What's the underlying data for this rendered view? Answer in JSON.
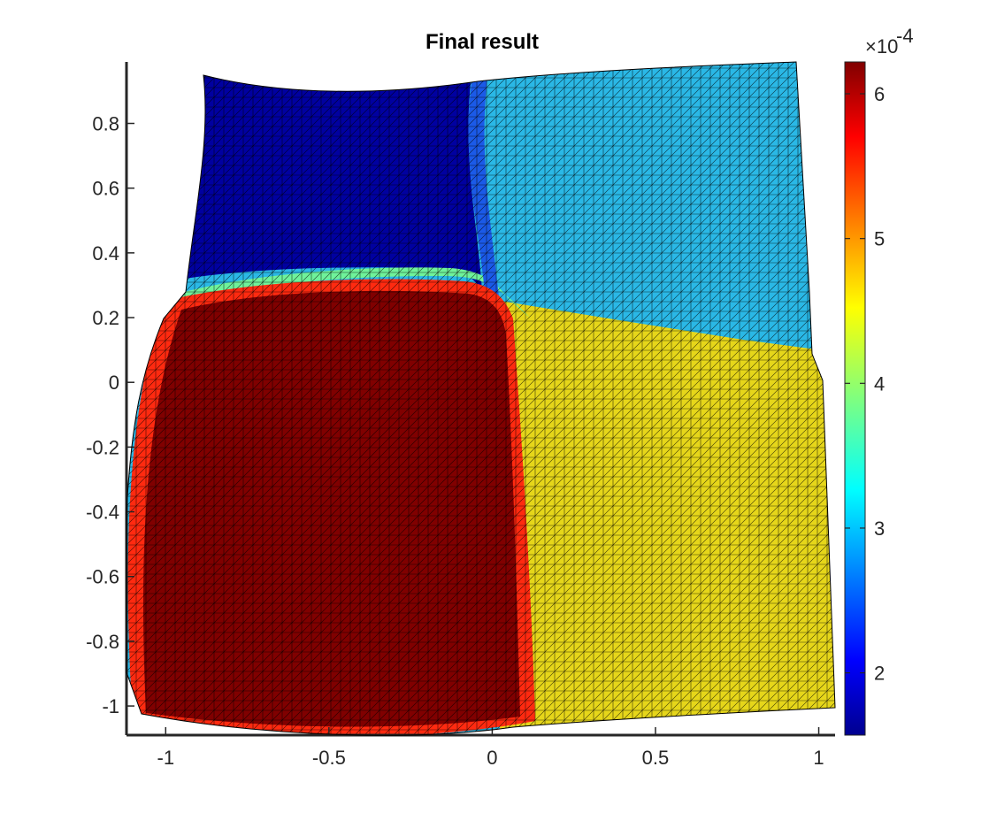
{
  "chart_data": {
    "type": "heatmap",
    "title": "Final result",
    "xlabel": "",
    "ylabel": "",
    "xlim": [
      -1.12,
      1.05
    ],
    "ylim": [
      -1.09,
      0.99
    ],
    "x_ticks": [
      -1,
      -0.5,
      0,
      0.5,
      1
    ],
    "x_tick_labels": [
      "-1",
      "-0.5",
      "0",
      "0.5",
      "1"
    ],
    "y_ticks": [
      0.8,
      0.6,
      0.4,
      0.2,
      0,
      -0.2,
      -0.4,
      -0.6,
      -0.8,
      -1
    ],
    "y_tick_labels": [
      "0.8",
      "0.6",
      "0.4",
      "0.2",
      "0",
      "-0.2",
      "-0.4",
      "-0.6",
      "-0.8",
      "-1"
    ],
    "colorbar": {
      "colormap": "jet",
      "clim": [
        1.57,
        6.22
      ],
      "ticks": [
        2,
        3,
        4,
        5,
        6
      ],
      "tick_labels": [
        "2",
        "3",
        "4",
        "5",
        "6"
      ],
      "exponent_base": "×10",
      "exponent_power": "-4"
    },
    "regions": [
      {
        "position": "bottom-left",
        "value": 6.2,
        "color": "#800000"
      },
      {
        "position": "bottom-right",
        "value": 4.4,
        "color": "#e6d61a"
      },
      {
        "position": "top-left",
        "value": 1.65,
        "color": "#0000a0"
      },
      {
        "position": "top-right",
        "value": 3.1,
        "color": "#2ab8e6"
      }
    ],
    "mesh": "triangulated, deformed square",
    "grid": false
  }
}
